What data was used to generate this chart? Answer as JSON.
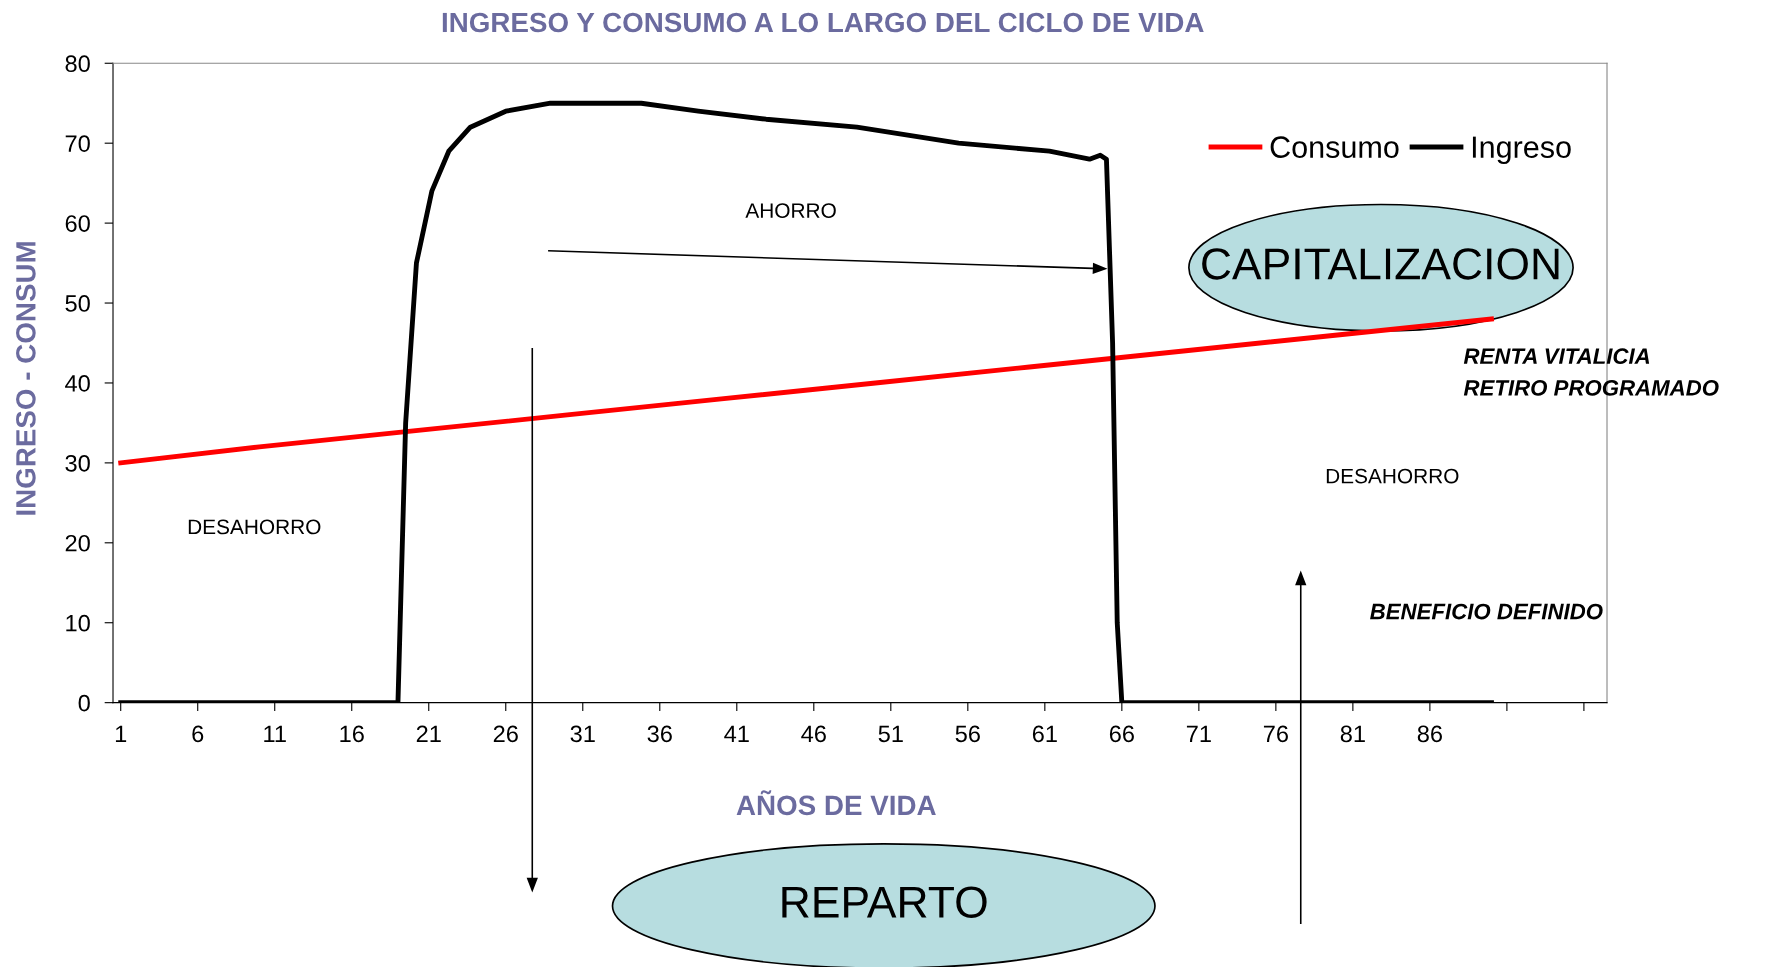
{
  "chart_data": {
    "type": "line",
    "title": "INGRESO Y CONSUMO A LO LARGO DEL CICLO DE VIDA",
    "xlabel": "AÑOS DE VIDA",
    "ylabel": "INGRESO - CONSUM",
    "xlim": [
      0.5,
      97.5
    ],
    "xticks": [
      1,
      6,
      11,
      16,
      21,
      26,
      31,
      36,
      41,
      46,
      51,
      56,
      61,
      66,
      71,
      76,
      81,
      86,
      {
        "value": 91,
        "label": null
      },
      {
        "value": 96,
        "label": null
      }
    ],
    "ylim": [
      0,
      80
    ],
    "yticks": [
      0,
      10,
      20,
      30,
      40,
      50,
      60,
      70,
      80
    ],
    "grid": false,
    "legend": "top right",
    "marker": "none",
    "line_style": "solid",
    "series": [
      {
        "name": "Consumo",
        "color": "#ff0000",
        "x": [
          1,
          10,
          20,
          30,
          40,
          50,
          60,
          70,
          80,
          90
        ],
        "values": [
          30,
          32,
          34,
          36,
          38,
          40,
          42,
          44,
          46,
          48
        ]
      },
      {
        "name": "Ingreso",
        "color": "#000000",
        "x": [
          1,
          19,
          19.5,
          20.2,
          21.2,
          22.3,
          23.7,
          26,
          28.9,
          34.8,
          38.5,
          42.9,
          48.8,
          55.4,
          61.3,
          63.9,
          64.6,
          65,
          65.4,
          65.7,
          66,
          90
        ],
        "values": [
          0,
          0,
          35,
          55,
          64,
          69,
          72,
          74,
          75,
          75,
          74,
          73,
          72,
          70,
          69,
          68,
          68.5,
          68,
          45,
          10,
          0,
          0
        ]
      }
    ],
    "annotations": [
      "AHORRO",
      "DESAHORRO",
      "DESAHORRO",
      "CAPITALIZACION",
      "REPARTO",
      "RENTA VITALICIA",
      "RETIRO PROGRAMADO",
      "BENEFICIO DEFINIDO"
    ]
  }
}
